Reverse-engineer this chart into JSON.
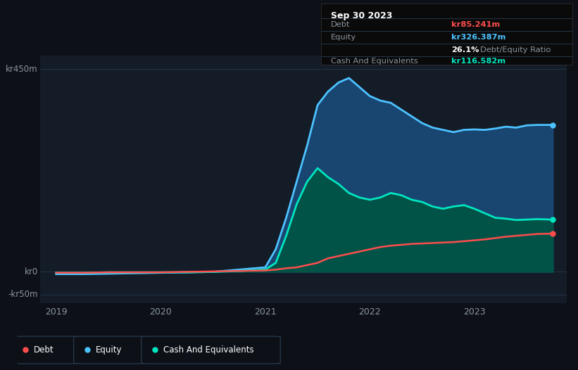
{
  "bg_color": "#0d1117",
  "plot_bg_color": "#131c27",
  "axis_label_color": "#8b949e",
  "tooltip": {
    "date": "Sep 30 2023",
    "debt_label": "Debt",
    "debt_value": "kr85.241m",
    "equity_label": "Equity",
    "equity_value": "kr326.387m",
    "ratio_value": "26.1%",
    "ratio_label": "Debt/Equity Ratio",
    "cash_label": "Cash And Equivalents",
    "cash_value": "kr116.582m",
    "debt_color": "#ff4d4d",
    "equity_color": "#4dc3ff",
    "cash_color": "#00e5c0"
  },
  "legend": [
    {
      "label": "Debt",
      "color": "#ff4d4d"
    },
    {
      "label": "Equity",
      "color": "#4dc3ff"
    },
    {
      "label": "Cash And Equivalents",
      "color": "#00e5c0"
    }
  ],
  "equity_color": "#4dc3ff",
  "equity_fill": "#1a4a7a",
  "debt_color": "#ff4d4d",
  "cash_color": "#00e5c0",
  "x": [
    2019.0,
    2019.25,
    2019.5,
    2019.75,
    2020.0,
    2020.25,
    2020.5,
    2020.75,
    2021.0,
    2021.1,
    2021.2,
    2021.3,
    2021.4,
    2021.5,
    2021.6,
    2021.7,
    2021.8,
    2021.9,
    2022.0,
    2022.1,
    2022.2,
    2022.3,
    2022.4,
    2022.5,
    2022.6,
    2022.7,
    2022.8,
    2022.9,
    2023.0,
    2023.1,
    2023.2,
    2023.3,
    2023.4,
    2023.5,
    2023.6,
    2023.75
  ],
  "equity": [
    -5,
    -5,
    -4,
    -3,
    -2,
    -1,
    0,
    5,
    10,
    50,
    120,
    200,
    280,
    370,
    400,
    420,
    430,
    410,
    390,
    380,
    375,
    360,
    345,
    330,
    320,
    315,
    310,
    315,
    316,
    315,
    318,
    322,
    320,
    325,
    326,
    326
  ],
  "cash": [
    -2,
    -2,
    -1,
    -1,
    -1,
    -1,
    0,
    2,
    5,
    20,
    80,
    150,
    200,
    230,
    210,
    195,
    175,
    165,
    160,
    165,
    175,
    170,
    160,
    155,
    145,
    140,
    145,
    148,
    140,
    130,
    120,
    118,
    115,
    116,
    117,
    116
  ],
  "debt": [
    -2,
    -2,
    -1,
    -1,
    -1,
    0,
    1,
    2,
    3,
    5,
    8,
    10,
    15,
    20,
    30,
    35,
    40,
    45,
    50,
    55,
    58,
    60,
    62,
    63,
    64,
    65,
    66,
    68,
    70,
    72,
    75,
    78,
    80,
    82,
    84,
    85
  ],
  "ylim": [
    -70,
    480
  ],
  "xlim": [
    2018.85,
    2023.88
  ]
}
